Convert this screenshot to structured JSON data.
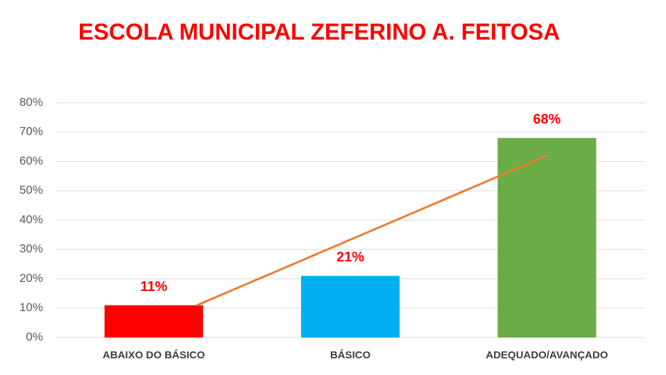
{
  "chart_data": {
    "type": "bar",
    "title": "ESCOLA MUNICIPAL ZEFERINO A. FEITOSA",
    "categories": [
      "ABAIXO DO BÁSICO",
      "BÁSICO",
      "ADEQUADO/AVANÇADO"
    ],
    "values": [
      11,
      21,
      68
    ],
    "value_labels": [
      "11%",
      "21%",
      "68%"
    ],
    "colors": [
      "#ff0000",
      "#00b0f0",
      "#6aac46"
    ],
    "ylim": [
      0,
      80
    ],
    "yticks": [
      {
        "value": 0,
        "label": "0%"
      },
      {
        "value": 10,
        "label": "10%"
      },
      {
        "value": 20,
        "label": "20%"
      },
      {
        "value": 30,
        "label": "30%"
      },
      {
        "value": 40,
        "label": "40%"
      },
      {
        "value": 50,
        "label": "50%"
      },
      {
        "value": 60,
        "label": "60%"
      },
      {
        "value": 70,
        "label": "70%"
      },
      {
        "value": 80,
        "label": "80%"
      }
    ],
    "grid": true,
    "trendline": {
      "color": "#ed7d31",
      "x": [
        0.22,
        2
      ],
      "values": [
        11,
        62
      ]
    }
  }
}
